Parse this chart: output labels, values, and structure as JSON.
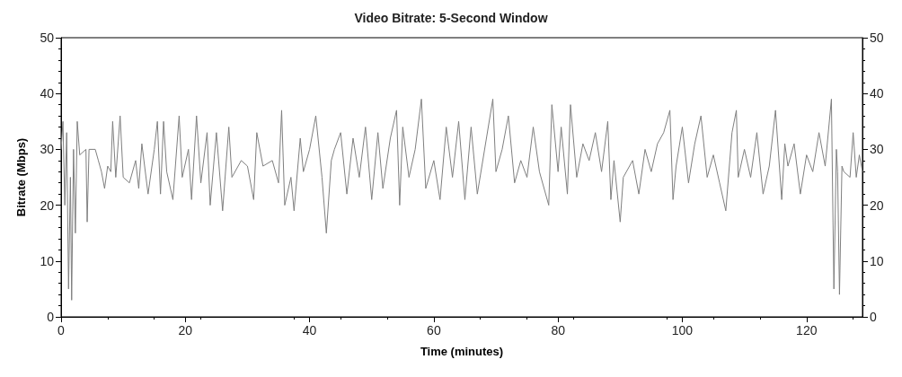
{
  "chart_data": {
    "type": "line",
    "title": "Video Bitrate: 5-Second Window",
    "xlabel": "Time (minutes)",
    "ylabel": "Bitrate (Mbps)",
    "xlim": [
      0,
      129
    ],
    "xticks": [
      0,
      20,
      40,
      60,
      80,
      100,
      120
    ],
    "ylim": [
      0,
      50
    ],
    "yticks": [
      0,
      10,
      20,
      30,
      40,
      50
    ],
    "y2lim": [
      0,
      50
    ],
    "y2ticks": [
      0,
      10,
      20,
      30,
      40,
      50
    ],
    "series": [
      {
        "color": "#7f7f7f",
        "x": [
          0,
          0.3,
          0.6,
          0.9,
          1.2,
          1.5,
          1.7,
          2,
          2.3,
          2.6,
          3,
          4,
          4.2,
          4.5,
          5.5,
          6,
          6.5,
          7,
          7.5,
          8,
          8.3,
          8.8,
          9.5,
          10,
          11,
          12,
          12.5,
          13,
          14,
          15,
          15.5,
          16,
          16.5,
          17,
          18,
          19,
          19.5,
          20.5,
          21,
          21.8,
          22.5,
          23.5,
          24,
          25,
          26,
          27,
          27.5,
          29,
          30,
          31,
          31.5,
          32.5,
          34,
          35,
          35.5,
          36,
          37,
          37.5,
          38.5,
          39,
          40,
          41,
          42,
          42.7,
          43.5,
          44,
          45,
          46,
          47,
          48,
          49,
          50,
          51,
          51.8,
          53,
          54,
          54.5,
          55,
          56,
          57,
          58,
          58.7,
          60,
          61,
          62,
          63,
          64,
          65,
          66,
          67,
          69.5,
          70,
          71,
          72,
          73,
          74,
          75,
          76,
          77,
          78.5,
          79,
          80,
          80.5,
          81.5,
          82,
          83,
          84,
          85,
          86,
          87,
          88,
          88.5,
          89,
          90,
          90.5,
          92,
          93,
          94,
          95,
          96,
          97,
          98,
          98.5,
          99,
          100,
          101,
          102,
          103,
          104,
          105,
          106,
          107,
          108,
          108.7,
          109,
          110,
          111,
          112,
          113,
          114,
          115,
          116,
          116.5,
          117,
          118,
          119,
          120,
          121,
          122,
          123,
          124,
          124.4,
          124.8,
          125,
          125.3,
          125.7,
          126,
          127,
          127.5,
          128,
          128.5,
          129
        ],
        "values": [
          30,
          35,
          20,
          33,
          5,
          25,
          3,
          30,
          15,
          35,
          29,
          30,
          17,
          30,
          30,
          28,
          26,
          23,
          27,
          26,
          35,
          25,
          36,
          25,
          24,
          28,
          23,
          31,
          22,
          30,
          35,
          22,
          35,
          26,
          21,
          36,
          25,
          30,
          21,
          36,
          24,
          33,
          20,
          33,
          19,
          34,
          25,
          28,
          27,
          21,
          33,
          27,
          28,
          24,
          37,
          20,
          25,
          19,
          32,
          26,
          30,
          36,
          25,
          15,
          28,
          30,
          33,
          22,
          32,
          25,
          34,
          21,
          33,
          23,
          32,
          37,
          20,
          34,
          25,
          30,
          39,
          23,
          28,
          21,
          34,
          25,
          35,
          21,
          34,
          22,
          39,
          26,
          30,
          36,
          24,
          28,
          25,
          34,
          26,
          20,
          38,
          26,
          34,
          22,
          38,
          25,
          31,
          28,
          33,
          26,
          35,
          21,
          28,
          17,
          25,
          28,
          22,
          30,
          26,
          31,
          33,
          37,
          21,
          27,
          34,
          24,
          31,
          36,
          25,
          29,
          24,
          19,
          33,
          37,
          25,
          30,
          25,
          33,
          22,
          27,
          37,
          21,
          31,
          27,
          31,
          22,
          29,
          26,
          33,
          27,
          39,
          5,
          30,
          26,
          4,
          27,
          26,
          25,
          33,
          25,
          29,
          26
        ]
      }
    ]
  }
}
